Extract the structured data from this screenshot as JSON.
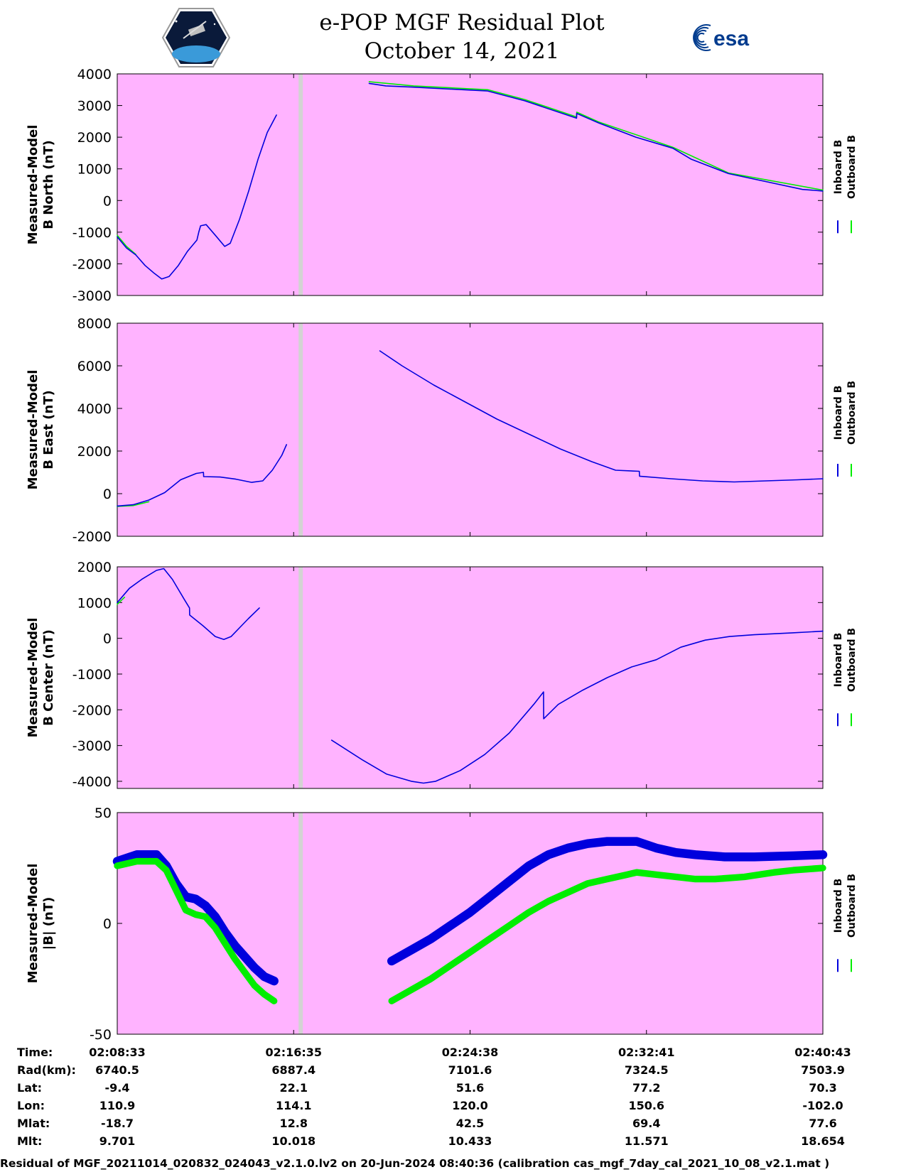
{
  "header": {
    "title": "e-POP MGF Residual Plot",
    "date": "October 14, 2021",
    "logo_left": "epop-mission-logo",
    "logo_right": "esa-logo",
    "esa_text": "esa"
  },
  "colors": {
    "background": "#FFB3FF",
    "inboard": "#0000DD",
    "outboard": "#00EE00",
    "gap_line": "#D3D3D3"
  },
  "legend": {
    "inboard": "Inboard B",
    "outboard": "Outboard B"
  },
  "chart_data": [
    {
      "type": "line",
      "ylabel_line1": "Measured-Model",
      "ylabel_line2": "B North (nT)",
      "ylim": [
        -3000,
        4000
      ],
      "yticks": [
        "4000",
        "3000",
        "2000",
        "1000",
        "0",
        "-1000",
        "-2000",
        "-3000"
      ],
      "series": [
        {
          "name": "Inboard B",
          "segments": [
            [
              [
                0,
                -1150
              ],
              [
                0.5,
                -1500
              ],
              [
                1,
                -1720
              ],
              [
                1.5,
                -2050
              ],
              [
                2,
                -2300
              ],
              [
                2.4,
                -2480
              ],
              [
                2.8,
                -2400
              ],
              [
                3.3,
                -2050
              ],
              [
                3.8,
                -1600
              ],
              [
                4.3,
                -1250
              ],
              [
                4.4,
                -1000
              ],
              [
                4.5,
                -800
              ],
              [
                4.8,
                -760
              ],
              [
                5.3,
                -1100
              ],
              [
                5.8,
                -1450
              ],
              [
                6.1,
                -1350
              ],
              [
                6.6,
                -600
              ],
              [
                7.1,
                300
              ],
              [
                7.6,
                1300
              ],
              [
                8.1,
                2150
              ],
              [
                8.6,
                2700
              ]
            ],
            [
              [
                13.6,
                3700
              ],
              [
                14.5,
                3620
              ],
              [
                16,
                3580
              ],
              [
                18,
                3520
              ],
              [
                20,
                3460
              ],
              [
                22,
                3150
              ],
              [
                24.8,
                2600
              ],
              [
                24.81,
                2750
              ],
              [
                26,
                2450
              ],
              [
                28,
                2000
              ],
              [
                30,
                1650
              ],
              [
                31,
                1300
              ],
              [
                33,
                850
              ],
              [
                35,
                600
              ],
              [
                37,
                350
              ],
              [
                38.1,
                300
              ]
            ]
          ]
        },
        {
          "name": "Outboard B",
          "segments": [
            [
              [
                0,
                -1100
              ],
              [
                0.5,
                -1450
              ],
              [
                1,
                -1700
              ]
            ],
            [
              [
                13.6,
                3750
              ],
              [
                16,
                3620
              ],
              [
                18,
                3560
              ],
              [
                20,
                3500
              ],
              [
                22,
                3190
              ],
              [
                24.8,
                2640
              ],
              [
                24.81,
                2790
              ],
              [
                26,
                2480
              ],
              [
                30,
                1680
              ],
              [
                33,
                870
              ],
              [
                38.1,
                330
              ]
            ]
          ]
        }
      ]
    },
    {
      "type": "line",
      "ylabel_line1": "Measured-Model",
      "ylabel_line2": "B East (nT)",
      "ylim": [
        -2000,
        8000
      ],
      "yticks": [
        "8000",
        "6000",
        "4000",
        "2000",
        "0",
        "-2000"
      ],
      "series": [
        {
          "name": "Inboard B",
          "segments": [
            [
              [
                0,
                -580
              ],
              [
                1,
                -520
              ],
              [
                2,
                -300
              ],
              [
                3,
                50
              ],
              [
                4,
                650
              ],
              [
                5,
                950
              ],
              [
                5.45,
                1000
              ],
              [
                5.46,
                800
              ],
              [
                6.5,
                780
              ],
              [
                7.5,
                680
              ],
              [
                8.5,
                530
              ],
              [
                9.2,
                600
              ],
              [
                9.8,
                1100
              ],
              [
                10.4,
                1800
              ],
              [
                10.7,
                2300
              ]
            ],
            [
              [
                16.6,
                6700
              ],
              [
                18,
                6000
              ],
              [
                20,
                5100
              ],
              [
                22,
                4300
              ],
              [
                24,
                3500
              ],
              [
                26,
                2800
              ],
              [
                28,
                2100
              ],
              [
                30,
                1500
              ],
              [
                31.5,
                1100
              ],
              [
                33,
                1050
              ],
              [
                33.01,
                820
              ],
              [
                35,
                700
              ],
              [
                37,
                600
              ],
              [
                39,
                550
              ],
              [
                41,
                600
              ],
              [
                43,
                650
              ],
              [
                44.6,
                700
              ]
            ]
          ]
        },
        {
          "name": "Outboard B",
          "segments": [
            [
              [
                0,
                -600
              ],
              [
                1,
                -560
              ],
              [
                2,
                -380
              ]
            ]
          ]
        }
      ]
    },
    {
      "type": "line",
      "ylabel_line1": "Measured-Model",
      "ylabel_line2": "B Center (nT)",
      "ylim": [
        -4200,
        2000
      ],
      "yticks": [
        "2000",
        "1000",
        "0",
        "-1000",
        "-2000",
        "-3000",
        "-4000"
      ],
      "series": [
        {
          "name": "Inboard B",
          "segments": [
            [
              [
                0,
                1000
              ],
              [
                1,
                1400
              ],
              [
                2,
                1650
              ],
              [
                3.2,
                1900
              ],
              [
                3.8,
                1950
              ],
              [
                4.5,
                1650
              ],
              [
                5.45,
                1100
              ],
              [
                5.9,
                850
              ],
              [
                5.91,
                650
              ],
              [
                7,
                350
              ],
              [
                8,
                50
              ],
              [
                8.7,
                -30
              ],
              [
                9.3,
                50
              ],
              [
                10,
                300
              ],
              [
                10.7,
                550
              ],
              [
                11.6,
                850
              ]
            ],
            [
              [
                17.5,
                -2850
              ],
              [
                20,
                -3400
              ],
              [
                22,
                -3800
              ],
              [
                24,
                -4000
              ],
              [
                25,
                -4050
              ],
              [
                26,
                -4000
              ],
              [
                28,
                -3700
              ],
              [
                30,
                -3250
              ],
              [
                32,
                -2650
              ],
              [
                34,
                -1850
              ],
              [
                34.8,
                -1500
              ],
              [
                34.81,
                -2250
              ],
              [
                36,
                -1850
              ],
              [
                38,
                -1450
              ],
              [
                40,
                -1100
              ],
              [
                42,
                -800
              ],
              [
                44,
                -600
              ],
              [
                46,
                -250
              ],
              [
                48,
                -50
              ],
              [
                50,
                50
              ],
              [
                52,
                100
              ],
              [
                55,
                150
              ],
              [
                57.6,
                200
              ]
            ]
          ]
        },
        {
          "name": "Outboard B",
          "segments": [
            [
              [
                0,
                950
              ],
              [
                0.6,
                1150
              ]
            ]
          ]
        }
      ]
    },
    {
      "type": "line",
      "ylabel_line1": "Measured-Model",
      "ylabel_line2": "|B| (nT)",
      "ylim": [
        -50,
        50
      ],
      "yticks": [
        "50",
        "0",
        "-50"
      ],
      "series": [
        {
          "name": "Inboard B",
          "band": 4,
          "segments": [
            [
              [
                0,
                28
              ],
              [
                2,
                31
              ],
              [
                4,
                31
              ],
              [
                5,
                26
              ],
              [
                6,
                18
              ],
              [
                7,
                12
              ],
              [
                8,
                11
              ],
              [
                9,
                8
              ],
              [
                10,
                3
              ],
              [
                11,
                -4
              ],
              [
                12,
                -10
              ],
              [
                13,
                -15
              ],
              [
                14,
                -20
              ],
              [
                15,
                -24
              ],
              [
                16,
                -26
              ]
            ],
            [
              [
                28,
                -17
              ],
              [
                30,
                -12
              ],
              [
                32,
                -7
              ],
              [
                34,
                -1
              ],
              [
                36,
                5
              ],
              [
                38,
                12
              ],
              [
                40,
                19
              ],
              [
                42,
                26
              ],
              [
                44,
                31
              ],
              [
                46,
                34
              ],
              [
                48,
                36
              ],
              [
                50,
                37
              ],
              [
                52,
                37
              ],
              [
                53,
                37
              ],
              [
                55,
                34
              ],
              [
                57,
                32
              ],
              [
                59,
                31
              ],
              [
                62,
                30
              ],
              [
                65,
                30
              ],
              [
                69,
                30.5
              ],
              [
                72,
                31
              ]
            ]
          ]
        },
        {
          "name": "Outboard B",
          "band": 3,
          "segments": [
            [
              [
                0,
                26
              ],
              [
                2,
                28
              ],
              [
                4,
                28
              ],
              [
                5,
                24
              ],
              [
                6,
                15
              ],
              [
                7,
                6
              ],
              [
                8,
                4
              ],
              [
                9,
                3
              ],
              [
                10,
                -2
              ],
              [
                11,
                -9
              ],
              [
                12,
                -16
              ],
              [
                13,
                -22
              ],
              [
                14,
                -28
              ],
              [
                15,
                -32
              ],
              [
                16,
                -35
              ]
            ],
            [
              [
                28,
                -35
              ],
              [
                30,
                -30
              ],
              [
                32,
                -25
              ],
              [
                34,
                -19
              ],
              [
                36,
                -13
              ],
              [
                38,
                -7
              ],
              [
                40,
                -1
              ],
              [
                42,
                5
              ],
              [
                44,
                10
              ],
              [
                46,
                14
              ],
              [
                48,
                18
              ],
              [
                50,
                20
              ],
              [
                52,
                22
              ],
              [
                53,
                23
              ],
              [
                55,
                22
              ],
              [
                57,
                21
              ],
              [
                59,
                20
              ],
              [
                61,
                20
              ],
              [
                64,
                21
              ],
              [
                67,
                23
              ],
              [
                69,
                24
              ],
              [
                72,
                25
              ]
            ]
          ]
        }
      ]
    }
  ],
  "gap_marker_fraction": 0.26,
  "footer": {
    "rows": [
      {
        "label": "Time:",
        "values": [
          "02:08:33",
          "02:16:35",
          "02:24:38",
          "02:32:41",
          "02:40:43"
        ]
      },
      {
        "label": "Rad(km):",
        "values": [
          "6740.5",
          "6887.4",
          "7101.6",
          "7324.5",
          "7503.9"
        ]
      },
      {
        "label": "Lat:",
        "values": [
          "-9.4",
          "22.1",
          "51.6",
          "77.2",
          "70.3"
        ]
      },
      {
        "label": "Lon:",
        "values": [
          "110.9",
          "114.1",
          "120.0",
          "150.6",
          "-102.0"
        ]
      },
      {
        "label": "Mlat:",
        "values": [
          "-18.7",
          "12.8",
          "42.5",
          "69.4",
          "77.6"
        ]
      },
      {
        "label": "Mlt:",
        "values": [
          "9.701",
          "10.018",
          "10.433",
          "11.571",
          "18.654"
        ]
      }
    ],
    "caption": "Residual of MGF_20211014_020832_024043_v2.1.0.lv2 on 20-Jun-2024 08:40:36 (calibration cas_mgf_7day_cal_2021_10_08_v2.1.mat )"
  }
}
